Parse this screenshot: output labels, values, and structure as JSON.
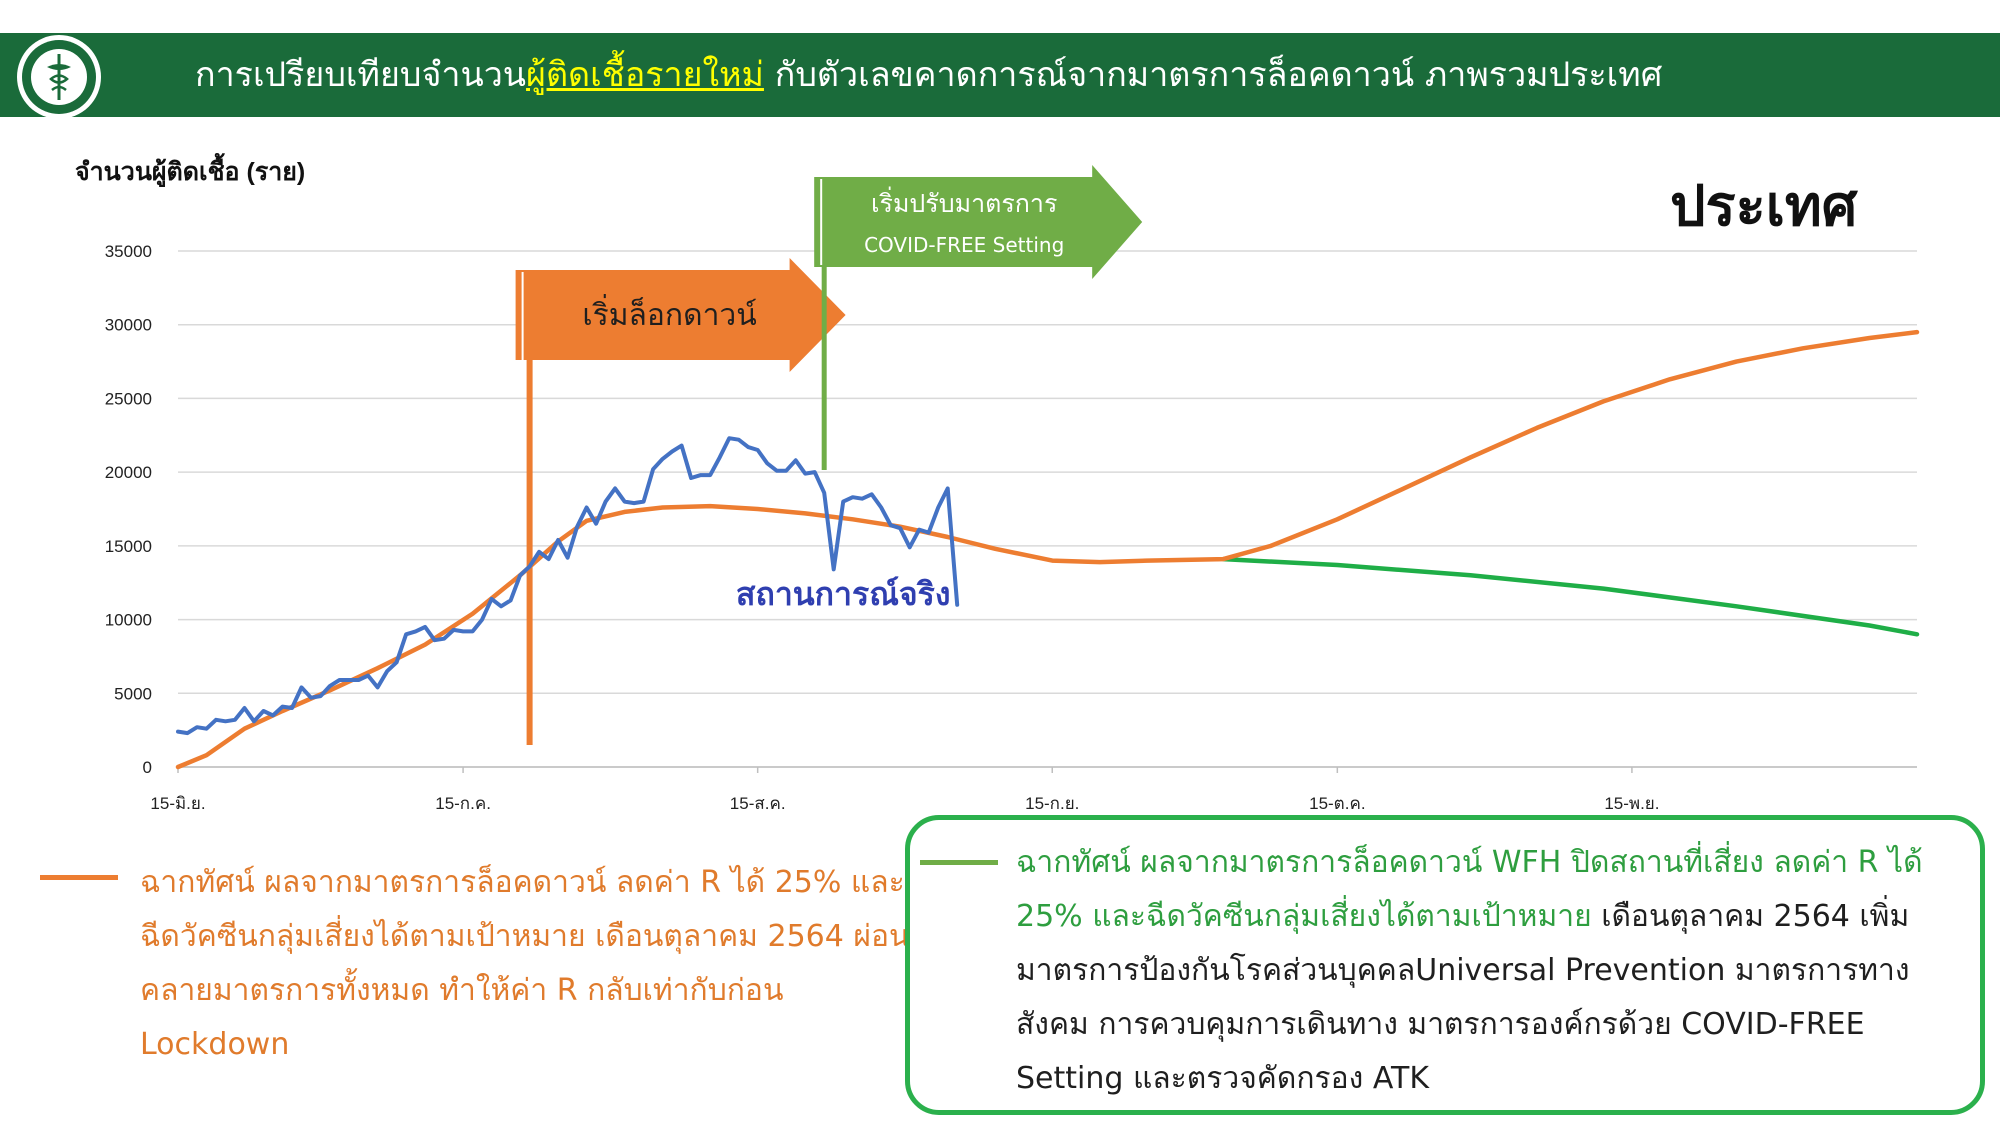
{
  "header": {
    "title_before": "การเปรียบเทียบจำนวน",
    "title_highlight": "ผู้ติดเชื้อรายใหม่",
    "title_after": " กับตัวเลขคาดการณ์จากมาตรการล็อคดาวน์ ภาพรวมประเทศ",
    "logo_icon": "ministry-of-public-health-seal-icon"
  },
  "colors": {
    "header_bg": "#1a6b3a",
    "actual": "#4472c4",
    "scenario_orange": "#ed7d31",
    "scenario_green": "#1fae47",
    "lockdown_arrow": "#ed7d31",
    "covid_free_arrow": "#70ad47"
  },
  "chart_data": {
    "type": "line",
    "ylabel": "จำนวนผู้ติดเชื้อ (ราย)",
    "region_label": "ประเทศ",
    "ylim": [
      0,
      35000
    ],
    "yticks": [
      0,
      5000,
      10000,
      15000,
      20000,
      25000,
      30000,
      35000
    ],
    "xlim": [
      "2021-06-15",
      "2021-12-15"
    ],
    "xticks": [
      {
        "date": "2021-06-15",
        "label": "15-มิ.ย."
      },
      {
        "date": "2021-07-15",
        "label": "15-ก.ค."
      },
      {
        "date": "2021-08-15",
        "label": "15-ส.ค."
      },
      {
        "date": "2021-09-15",
        "label": "15-ก.ย."
      },
      {
        "date": "2021-10-15",
        "label": "15-ต.ค."
      },
      {
        "date": "2021-11-15",
        "label": "15-พ.ย."
      }
    ],
    "grid": true,
    "annotations": [
      {
        "type": "vline",
        "date": "2021-07-22",
        "label": "เริ่มล็อกดาวน์"
      },
      {
        "type": "vline",
        "date": "2021-08-22",
        "label_line1": "เริ่มปรับมาตรการ",
        "label_line2": "COVID-FREE Setting"
      },
      {
        "type": "text",
        "date": "2021-08-24",
        "y": 11000,
        "label": "สถานการณ์จริง"
      }
    ],
    "series": [
      {
        "id": "actual",
        "values": [
          {
            "x": "2021-06-15",
            "y": 2400
          },
          {
            "x": "2021-06-16",
            "y": 2300
          },
          {
            "x": "2021-06-17",
            "y": 2700
          },
          {
            "x": "2021-06-18",
            "y": 2600
          },
          {
            "x": "2021-06-19",
            "y": 3200
          },
          {
            "x": "2021-06-20",
            "y": 3100
          },
          {
            "x": "2021-06-21",
            "y": 3200
          },
          {
            "x": "2021-06-22",
            "y": 4000
          },
          {
            "x": "2021-06-23",
            "y": 3100
          },
          {
            "x": "2021-06-24",
            "y": 3800
          },
          {
            "x": "2021-06-25",
            "y": 3500
          },
          {
            "x": "2021-06-26",
            "y": 4100
          },
          {
            "x": "2021-06-27",
            "y": 4000
          },
          {
            "x": "2021-06-28",
            "y": 5400
          },
          {
            "x": "2021-06-29",
            "y": 4700
          },
          {
            "x": "2021-06-30",
            "y": 4800
          },
          {
            "x": "2021-07-01",
            "y": 5500
          },
          {
            "x": "2021-07-02",
            "y": 5900
          },
          {
            "x": "2021-07-03",
            "y": 5900
          },
          {
            "x": "2021-07-04",
            "y": 5900
          },
          {
            "x": "2021-07-05",
            "y": 6200
          },
          {
            "x": "2021-07-06",
            "y": 5400
          },
          {
            "x": "2021-07-07",
            "y": 6500
          },
          {
            "x": "2021-07-08",
            "y": 7100
          },
          {
            "x": "2021-07-09",
            "y": 9000
          },
          {
            "x": "2021-07-10",
            "y": 9200
          },
          {
            "x": "2021-07-11",
            "y": 9500
          },
          {
            "x": "2021-07-12",
            "y": 8600
          },
          {
            "x": "2021-07-13",
            "y": 8700
          },
          {
            "x": "2021-07-14",
            "y": 9300
          },
          {
            "x": "2021-07-15",
            "y": 9200
          },
          {
            "x": "2021-07-16",
            "y": 9200
          },
          {
            "x": "2021-07-17",
            "y": 10000
          },
          {
            "x": "2021-07-18",
            "y": 11400
          },
          {
            "x": "2021-07-19",
            "y": 10900
          },
          {
            "x": "2021-07-20",
            "y": 11300
          },
          {
            "x": "2021-07-21",
            "y": 13000
          },
          {
            "x": "2021-07-22",
            "y": 13600
          },
          {
            "x": "2021-07-23",
            "y": 14600
          },
          {
            "x": "2021-07-24",
            "y": 14100
          },
          {
            "x": "2021-07-25",
            "y": 15400
          },
          {
            "x": "2021-07-26",
            "y": 14200
          },
          {
            "x": "2021-07-27",
            "y": 16300
          },
          {
            "x": "2021-07-28",
            "y": 17600
          },
          {
            "x": "2021-07-29",
            "y": 16500
          },
          {
            "x": "2021-07-30",
            "y": 18000
          },
          {
            "x": "2021-07-31",
            "y": 18900
          },
          {
            "x": "2021-08-01",
            "y": 18000
          },
          {
            "x": "2021-08-02",
            "y": 17900
          },
          {
            "x": "2021-08-03",
            "y": 18000
          },
          {
            "x": "2021-08-04",
            "y": 20200
          },
          {
            "x": "2021-08-05",
            "y": 20900
          },
          {
            "x": "2021-08-06",
            "y": 21400
          },
          {
            "x": "2021-08-07",
            "y": 21800
          },
          {
            "x": "2021-08-08",
            "y": 19600
          },
          {
            "x": "2021-08-09",
            "y": 19800
          },
          {
            "x": "2021-08-10",
            "y": 19800
          },
          {
            "x": "2021-08-11",
            "y": 21000
          },
          {
            "x": "2021-08-12",
            "y": 22300
          },
          {
            "x": "2021-08-13",
            "y": 22200
          },
          {
            "x": "2021-08-14",
            "y": 21700
          },
          {
            "x": "2021-08-15",
            "y": 21500
          },
          {
            "x": "2021-08-16",
            "y": 20600
          },
          {
            "x": "2021-08-17",
            "y": 20100
          },
          {
            "x": "2021-08-18",
            "y": 20100
          },
          {
            "x": "2021-08-19",
            "y": 20800
          },
          {
            "x": "2021-08-20",
            "y": 19900
          },
          {
            "x": "2021-08-21",
            "y": 20000
          },
          {
            "x": "2021-08-22",
            "y": 18600
          },
          {
            "x": "2021-08-23",
            "y": 13400
          },
          {
            "x": "2021-08-24",
            "y": 18000
          },
          {
            "x": "2021-08-25",
            "y": 18300
          },
          {
            "x": "2021-08-26",
            "y": 18200
          },
          {
            "x": "2021-08-27",
            "y": 18500
          },
          {
            "x": "2021-08-28",
            "y": 17600
          },
          {
            "x": "2021-08-29",
            "y": 16400
          },
          {
            "x": "2021-08-30",
            "y": 16200
          },
          {
            "x": "2021-08-31",
            "y": 14900
          },
          {
            "x": "2021-09-01",
            "y": 16100
          },
          {
            "x": "2021-09-02",
            "y": 15900
          },
          {
            "x": "2021-09-03",
            "y": 17600
          },
          {
            "x": "2021-09-04",
            "y": 18900
          },
          {
            "x": "2021-09-05",
            "y": 11000
          }
        ]
      },
      {
        "id": "scenario-orange",
        "values": [
          {
            "x": "2021-06-15",
            "y": 0
          },
          {
            "x": "2021-06-18",
            "y": 800
          },
          {
            "x": "2021-06-22",
            "y": 2600
          },
          {
            "x": "2021-06-26",
            "y": 3800
          },
          {
            "x": "2021-07-01",
            "y": 5200
          },
          {
            "x": "2021-07-06",
            "y": 6700
          },
          {
            "x": "2021-07-11",
            "y": 8300
          },
          {
            "x": "2021-07-16",
            "y": 10400
          },
          {
            "x": "2021-07-21",
            "y": 13000
          },
          {
            "x": "2021-07-25",
            "y": 15300
          },
          {
            "x": "2021-07-28",
            "y": 16700
          },
          {
            "x": "2021-08-01",
            "y": 17300
          },
          {
            "x": "2021-08-05",
            "y": 17600
          },
          {
            "x": "2021-08-10",
            "y": 17700
          },
          {
            "x": "2021-08-15",
            "y": 17500
          },
          {
            "x": "2021-08-20",
            "y": 17200
          },
          {
            "x": "2021-08-25",
            "y": 16800
          },
          {
            "x": "2021-08-30",
            "y": 16300
          },
          {
            "x": "2021-09-04",
            "y": 15600
          },
          {
            "x": "2021-09-09",
            "y": 14800
          },
          {
            "x": "2021-09-15",
            "y": 14000
          },
          {
            "x": "2021-09-20",
            "y": 13900
          },
          {
            "x": "2021-09-25",
            "y": 14000
          },
          {
            "x": "2021-10-03",
            "y": 14100
          },
          {
            "x": "2021-10-08",
            "y": 15000
          },
          {
            "x": "2021-10-15",
            "y": 16800
          },
          {
            "x": "2021-10-22",
            "y": 18900
          },
          {
            "x": "2021-10-29",
            "y": 21000
          },
          {
            "x": "2021-11-05",
            "y": 23000
          },
          {
            "x": "2021-11-12",
            "y": 24800
          },
          {
            "x": "2021-11-19",
            "y": 26300
          },
          {
            "x": "2021-11-26",
            "y": 27500
          },
          {
            "x": "2021-12-03",
            "y": 28400
          },
          {
            "x": "2021-12-10",
            "y": 29100
          },
          {
            "x": "2021-12-15",
            "y": 29500
          }
        ]
      },
      {
        "id": "scenario-green",
        "values": [
          {
            "x": "2021-10-03",
            "y": 14100
          },
          {
            "x": "2021-10-15",
            "y": 13700
          },
          {
            "x": "2021-10-29",
            "y": 13000
          },
          {
            "x": "2021-11-12",
            "y": 12100
          },
          {
            "x": "2021-11-26",
            "y": 10900
          },
          {
            "x": "2021-12-10",
            "y": 9600
          },
          {
            "x": "2021-12-15",
            "y": 9000
          }
        ]
      }
    ]
  },
  "legend": {
    "orange_text": "ฉากทัศน์ ผลจากมาตรการล็อคดาวน์ ลดค่า R ได้ 25% และฉีดวัคซีนกลุ่มเสี่ยงได้ตามเป้าหมาย เดือนตุลาคม 2564 ผ่อนคลายมาตรการทั้งหมด ทำให้ค่า R กลับเท่ากับก่อน Lockdown",
    "green_text_highlight": "ฉากทัศน์ ผลจากมาตรการล็อคดาวน์ WFH ปิดสถานที่เสี่ยง ลดค่า R ได้ 25% และฉีดวัคซีนกลุ่มเสี่ยงได้ตามเป้าหมาย",
    "green_text_rest": " เดือนตุลาคม 2564 เพิ่มมาตรการป้องกันโรคส่วนบุคคลUniversal Prevention มาตรการทางสังคม การควบคุมการเดินทาง มาตรการองค์กรด้วย COVID-FREE Setting และตรวจคัดกรอง ATK"
  }
}
